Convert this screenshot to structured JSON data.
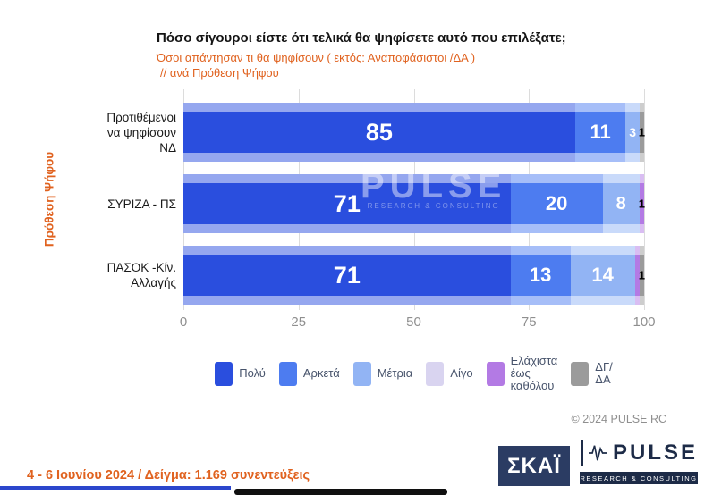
{
  "header": {
    "title": "Πόσο σίγουροι είστε ότι τελικά θα ψηφίσετε αυτό που επιλέξατε;",
    "subtitle1": "Όσοι απάντησαν τι θα ψηφίσουν ( εκτός: Αναποφάσιστοι /ΔΑ )",
    "subtitle2": "// ανά Πρόθεση Ψήφου"
  },
  "chart_data": {
    "type": "bar",
    "orientation": "horizontal",
    "stacked": true,
    "title": "Πόσο σίγουροι είστε ότι τελικά θα ψηφίσετε αυτό που επιλέξατε;",
    "ylabel": "Πρόθεση Ψήφου",
    "xlim": [
      0,
      100
    ],
    "xticks": [
      "0",
      "25",
      "50",
      "75",
      "100"
    ],
    "categories": [
      [
        "Προτιθέμενοι",
        "να ψηφίσουν",
        "ΝΔ"
      ],
      [
        "ΣΥΡΙΖΑ - ΠΣ"
      ],
      [
        "ΠΑΣΟΚ -Κίν.",
        "Αλλαγής"
      ]
    ],
    "series": [
      {
        "name": "Πολύ",
        "legend_lines": [
          "Πολύ"
        ],
        "color": "#2a4ede",
        "values": [
          85,
          71,
          71
        ]
      },
      {
        "name": "Αρκετά",
        "legend_lines": [
          "Αρκετά"
        ],
        "color": "#4d7cf0",
        "values": [
          11,
          20,
          13
        ]
      },
      {
        "name": "Μέτρια",
        "legend_lines": [
          "Μέτρια"
        ],
        "color": "#92b4f4",
        "values": [
          3,
          8,
          14
        ]
      },
      {
        "name": "Λίγο",
        "legend_lines": [
          "Λίγο"
        ],
        "color": "#d9d4f0",
        "values": [
          0,
          0,
          0
        ]
      },
      {
        "name": "Ελάχιστα έως καθόλου",
        "legend_lines": [
          "Ελάχιστα",
          "έως",
          "καθόλου"
        ],
        "color": "#b37ae4",
        "values": [
          0,
          1,
          1
        ]
      },
      {
        "name": "ΔΓ/ΔΑ",
        "legend_lines": [
          "ΔΓ/",
          "ΔΑ"
        ],
        "color": "#9b9b9b",
        "values": [
          1,
          0,
          1
        ]
      }
    ],
    "legend_position": "bottom",
    "grid": true
  },
  "watermark": {
    "text": "PULSE",
    "subtext": "RESEARCH & CONSULTING"
  },
  "copyright": "© 2024 PULSE RC",
  "footer": {
    "text": "4 - 6  Ιουνίου 2024  /  Δείγμα:  1.169 συνεντεύξεις"
  },
  "logos": {
    "skai_text": "ΣΚΑΪ",
    "pulse_text": "PULSE",
    "pulse_subtext": "RESEARCH & CONSULTING"
  }
}
